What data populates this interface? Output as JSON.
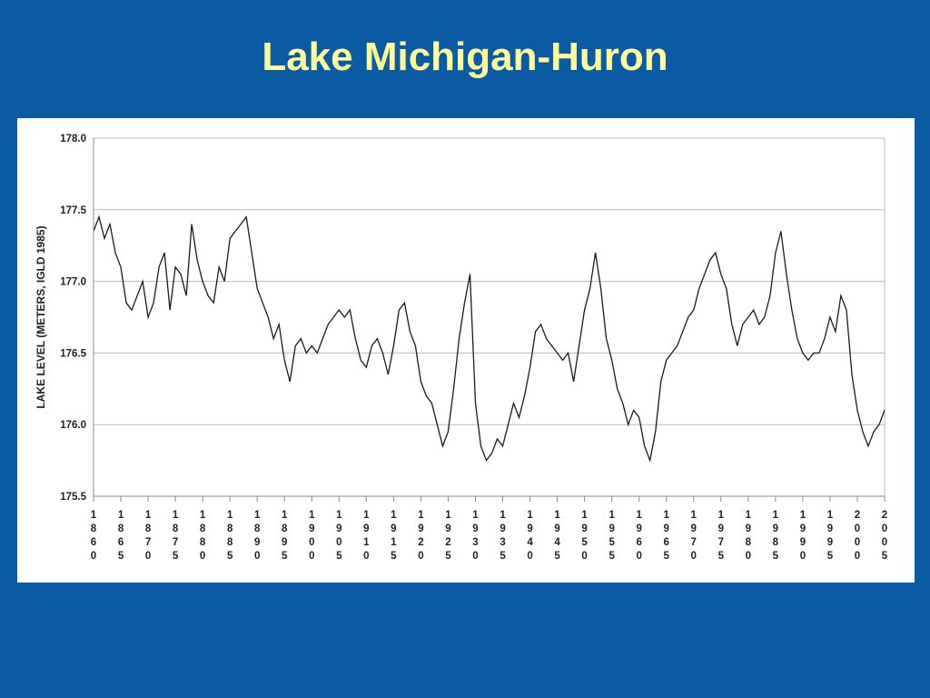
{
  "slide": {
    "title": "Lake Michigan-Huron"
  },
  "chart_data": {
    "type": "line",
    "title": "",
    "xlabel": "",
    "ylabel": "LAKE LEVEL (METERS, IGLD 1985)",
    "xlim": [
      1860,
      2005
    ],
    "ylim": [
      175.5,
      178.0
    ],
    "y_ticks": [
      "175.5",
      "176.0",
      "176.5",
      "177.0",
      "177.5",
      "178.0"
    ],
    "y_tick_values": [
      175.5,
      176.0,
      176.5,
      177.0,
      177.5,
      178.0
    ],
    "x_ticks": [
      "1860",
      "1865",
      "1870",
      "1875",
      "1880",
      "1885",
      "1890",
      "1895",
      "1900",
      "1905",
      "1910",
      "1915",
      "1920",
      "1925",
      "1930",
      "1935",
      "1940",
      "1945",
      "1950",
      "1955",
      "1960",
      "1965",
      "1970",
      "1975",
      "1980",
      "1985",
      "1990",
      "1995",
      "2000",
      "2005"
    ],
    "grid": true,
    "series": [
      {
        "name": "",
        "x": [
          1860,
          1861,
          1862,
          1863,
          1864,
          1865,
          1866,
          1867,
          1868,
          1869,
          1870,
          1871,
          1872,
          1873,
          1874,
          1875,
          1876,
          1877,
          1878,
          1879,
          1880,
          1881,
          1882,
          1883,
          1884,
          1885,
          1886,
          1887,
          1888,
          1889,
          1890,
          1891,
          1892,
          1893,
          1894,
          1895,
          1896,
          1897,
          1898,
          1899,
          1900,
          1901,
          1902,
          1903,
          1904,
          1905,
          1906,
          1907,
          1908,
          1909,
          1910,
          1911,
          1912,
          1913,
          1914,
          1915,
          1916,
          1917,
          1918,
          1919,
          1920,
          1921,
          1922,
          1923,
          1924,
          1925,
          1926,
          1927,
          1928,
          1929,
          1930,
          1931,
          1932,
          1933,
          1934,
          1935,
          1936,
          1937,
          1938,
          1939,
          1940,
          1941,
          1942,
          1943,
          1944,
          1945,
          1946,
          1947,
          1948,
          1949,
          1950,
          1951,
          1952,
          1953,
          1954,
          1955,
          1956,
          1957,
          1958,
          1959,
          1960,
          1961,
          1962,
          1963,
          1964,
          1965,
          1966,
          1967,
          1968,
          1969,
          1970,
          1971,
          1972,
          1973,
          1974,
          1975,
          1976,
          1977,
          1978,
          1979,
          1980,
          1981,
          1982,
          1983,
          1984,
          1985,
          1986,
          1987,
          1988,
          1989,
          1990,
          1991,
          1992,
          1993,
          1994,
          1995,
          1996,
          1997,
          1998,
          1999,
          2000,
          2001,
          2002,
          2003,
          2004,
          2005
        ],
        "values": [
          177.35,
          177.45,
          177.3,
          177.4,
          177.2,
          177.1,
          176.85,
          176.8,
          176.9,
          177.0,
          176.75,
          176.85,
          177.1,
          177.2,
          176.8,
          177.1,
          177.05,
          176.9,
          177.4,
          177.15,
          177.0,
          176.9,
          176.85,
          177.1,
          177.0,
          177.3,
          177.35,
          177.4,
          177.45,
          177.2,
          176.95,
          176.85,
          176.75,
          176.6,
          176.7,
          176.45,
          176.3,
          176.55,
          176.6,
          176.5,
          176.55,
          176.5,
          176.6,
          176.7,
          176.75,
          176.8,
          176.75,
          176.8,
          176.6,
          176.45,
          176.4,
          176.55,
          176.6,
          176.5,
          176.35,
          176.55,
          176.8,
          176.85,
          176.65,
          176.55,
          176.3,
          176.2,
          176.15,
          176.0,
          175.85,
          175.95,
          176.25,
          176.6,
          176.85,
          177.05,
          176.15,
          175.85,
          175.75,
          175.8,
          175.9,
          175.85,
          176.0,
          176.15,
          176.05,
          176.2,
          176.4,
          176.65,
          176.7,
          176.6,
          176.55,
          176.5,
          176.45,
          176.5,
          176.3,
          176.55,
          176.8,
          176.95,
          177.2,
          176.95,
          176.6,
          176.45,
          176.25,
          176.15,
          176.0,
          176.1,
          176.05,
          175.85,
          175.75,
          175.95,
          176.3,
          176.45,
          176.5,
          176.55,
          176.65,
          176.75,
          176.8,
          176.95,
          177.05,
          177.15,
          177.2,
          177.05,
          176.95,
          176.7,
          176.55,
          176.7,
          176.75,
          176.8,
          176.7,
          176.75,
          176.9,
          177.2,
          177.35,
          177.05,
          176.8,
          176.6,
          176.5,
          176.45,
          176.5,
          176.5,
          176.6,
          176.75,
          176.65,
          176.9,
          176.8,
          176.35,
          176.1,
          175.95,
          175.85,
          175.95,
          176.0,
          176.1
        ]
      }
    ]
  }
}
